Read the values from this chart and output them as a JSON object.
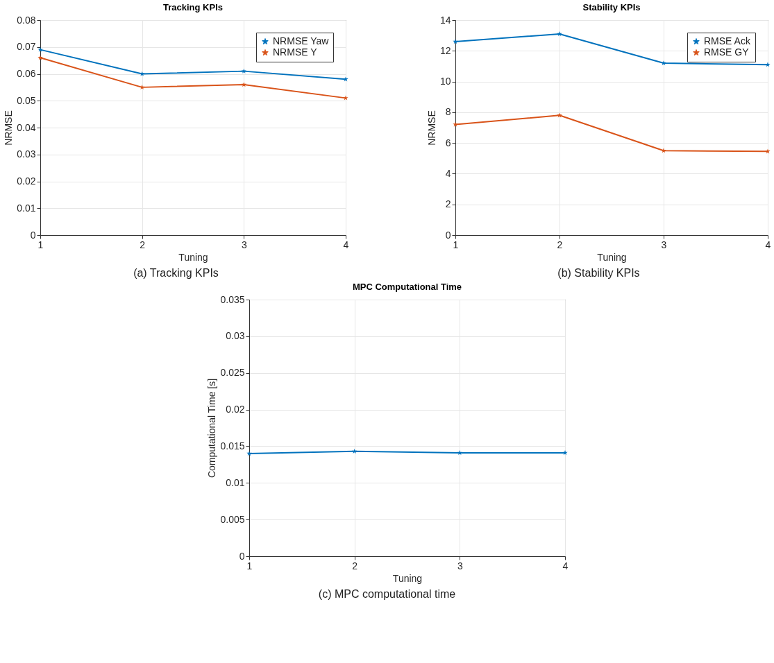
{
  "chart_data": [
    {
      "type": "line",
      "title": "Tracking KPIs",
      "xlabel": "Tuning",
      "ylabel": "NRMSE",
      "x": [
        1,
        2,
        3,
        4
      ],
      "xlim": [
        1,
        4
      ],
      "xticks": [
        1,
        2,
        3,
        4
      ],
      "ylim": [
        0,
        0.08
      ],
      "yticks": [
        0,
        0.01,
        0.02,
        0.03,
        0.04,
        0.05,
        0.06,
        0.07,
        0.08
      ],
      "grid": true,
      "legend": "top right",
      "marker": "star",
      "annotations": [
        "(a) Tracking KPIs"
      ],
      "series": [
        {
          "name": "NRMSE Yaw",
          "color": "#0072bd",
          "values": [
            0.069,
            0.06,
            0.061,
            0.058
          ]
        },
        {
          "name": "NRMSE Y",
          "color": "#d95319",
          "values": [
            0.066,
            0.055,
            0.056,
            0.051
          ]
        }
      ]
    },
    {
      "type": "line",
      "title": "Stability KPIs",
      "xlabel": "Tuning",
      "ylabel": "NRMSE",
      "x": [
        1,
        2,
        3,
        4
      ],
      "xlim": [
        1,
        4
      ],
      "xticks": [
        1,
        2,
        3,
        4
      ],
      "ylim": [
        0,
        14
      ],
      "yticks": [
        0,
        2,
        4,
        6,
        8,
        10,
        12,
        14
      ],
      "grid": true,
      "legend": "top right",
      "marker": "star",
      "annotations": [
        "(b) Stability KPIs"
      ],
      "series": [
        {
          "name": "RMSE Ack",
          "color": "#0072bd",
          "values": [
            12.6,
            13.1,
            11.2,
            11.1
          ]
        },
        {
          "name": "RMSE GY",
          "color": "#d95319",
          "values": [
            7.2,
            7.8,
            5.5,
            5.45
          ]
        }
      ]
    },
    {
      "type": "line",
      "title": "MPC Computational Time",
      "xlabel": "Tuning",
      "ylabel": "Computational Time [s]",
      "x": [
        1,
        2,
        3,
        4
      ],
      "xlim": [
        1,
        4
      ],
      "xticks": [
        1,
        2,
        3,
        4
      ],
      "ylim": [
        0,
        0.035
      ],
      "yticks": [
        0,
        0.005,
        0.01,
        0.015,
        0.02,
        0.025,
        0.03,
        0.035
      ],
      "grid": true,
      "marker": "star",
      "annotations": [
        "(c) MPC computational time"
      ],
      "series": [
        {
          "color": "#0072bd",
          "values": [
            0.014,
            0.0143,
            0.0141,
            0.0141
          ]
        }
      ]
    }
  ]
}
